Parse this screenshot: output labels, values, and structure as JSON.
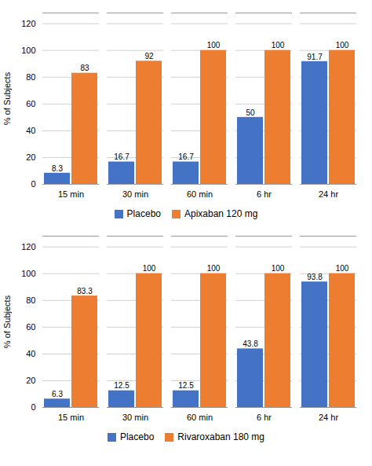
{
  "chart_data": [
    {
      "type": "bar",
      "categories": [
        "15 min",
        "30 min",
        "60 min",
        "6 hr",
        "24 hr"
      ],
      "series": [
        {
          "name": "Placebo",
          "color": "#4472C4",
          "values": [
            8.3,
            16.7,
            16.7,
            50,
            91.7
          ]
        },
        {
          "name": "Apixaban 120 mg",
          "color": "#ED7D31",
          "values": [
            83,
            92,
            100,
            100,
            100
          ]
        }
      ],
      "ylabel": "% of Subjects",
      "ylim": [
        0,
        128
      ],
      "yticks": [
        0,
        20,
        40,
        60,
        80,
        100,
        120
      ],
      "grid": true,
      "data_labels": true,
      "legend": "bottom"
    },
    {
      "type": "bar",
      "categories": [
        "15 min",
        "30 min",
        "60 min",
        "6 hr",
        "24 hr"
      ],
      "series": [
        {
          "name": "Placebo",
          "color": "#4472C4",
          "values": [
            6.3,
            12.5,
            12.5,
            43.8,
            93.8
          ]
        },
        {
          "name": "Rivaroxaban 180 mg",
          "color": "#ED7D31",
          "values": [
            83.3,
            100,
            100,
            100,
            100
          ]
        }
      ],
      "ylabel": "% of Subjects",
      "ylim": [
        0,
        128
      ],
      "yticks": [
        0,
        20,
        40,
        60,
        80,
        100,
        120
      ],
      "grid": true,
      "data_labels": true,
      "legend": "bottom"
    }
  ]
}
